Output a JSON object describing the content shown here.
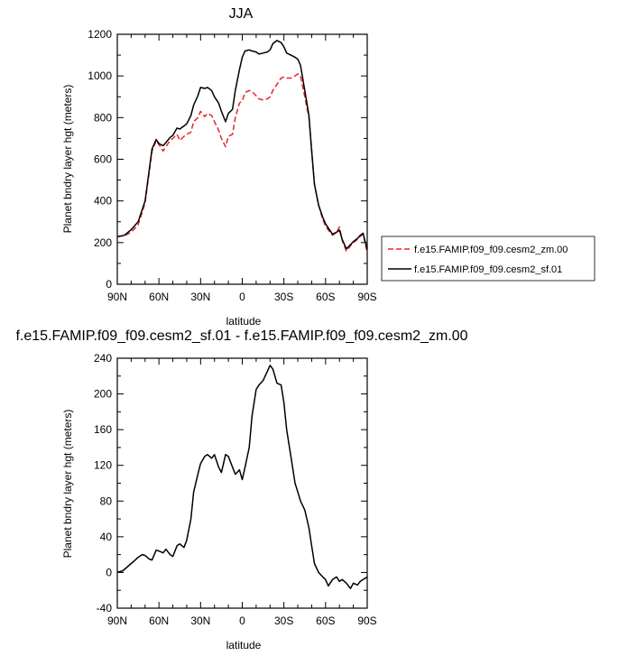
{
  "chart_data": [
    {
      "type": "line",
      "title": "JJA",
      "xlabel": "latitude",
      "ylabel": "Planet bndry layer hgt (meters)",
      "xlim": [
        90,
        -90
      ],
      "ylim": [
        0,
        1200
      ],
      "x_tick_labels": [
        "90N",
        "60N",
        "30N",
        "0",
        "30S",
        "60S",
        "90S"
      ],
      "y_tick_labels": [
        "0",
        "200",
        "400",
        "600",
        "800",
        "1000",
        "1200"
      ],
      "legend_position": "right",
      "x": [
        90,
        85,
        80,
        75,
        70,
        65,
        62,
        60,
        57,
        55,
        52,
        50,
        47,
        45,
        42,
        40,
        37,
        35,
        32,
        30,
        27,
        25,
        22,
        20,
        17,
        15,
        12,
        10,
        7,
        5,
        2,
        0,
        -2,
        -5,
        -7,
        -10,
        -12,
        -15,
        -18,
        -20,
        -22,
        -25,
        -28,
        -30,
        -32,
        -35,
        -38,
        -40,
        -42,
        -45,
        -48,
        -50,
        -52,
        -55,
        -58,
        -60,
        -62,
        -65,
        -68,
        -70,
        -72,
        -75,
        -78,
        -80,
        -83,
        -85,
        -87,
        -90
      ],
      "series": [
        {
          "name": "f.e15.FAMIP.f09_f09.cesm2_zm.00",
          "color": "#e8232a",
          "dash": "dashed",
          "values": [
            230,
            232,
            250,
            285,
            390,
            640,
            690,
            670,
            640,
            660,
            690,
            700,
            720,
            690,
            710,
            720,
            730,
            780,
            800,
            830,
            805,
            820,
            810,
            780,
            740,
            700,
            660,
            710,
            720,
            800,
            870,
            880,
            920,
            930,
            925,
            905,
            890,
            885,
            890,
            900,
            930,
            960,
            990,
            995,
            990,
            990,
            1000,
            1010,
            1000,
            900,
            800,
            650,
            480,
            380,
            310,
            280,
            260,
            235,
            250,
            275,
            210,
            160,
            185,
            200,
            215,
            230,
            240,
            155
          ]
        },
        {
          "name": "f.e15.FAMIP.f09_f09.cesm2_sf.01",
          "color": "#000000",
          "dash": "solid",
          "values": [
            228,
            235,
            262,
            300,
            400,
            650,
            695,
            675,
            665,
            680,
            705,
            715,
            750,
            745,
            760,
            770,
            810,
            860,
            905,
            945,
            940,
            945,
            930,
            900,
            870,
            830,
            780,
            820,
            840,
            930,
            1030,
            1090,
            1120,
            1125,
            1120,
            1115,
            1105,
            1110,
            1115,
            1125,
            1155,
            1170,
            1160,
            1140,
            1110,
            1100,
            1090,
            1080,
            1050,
            930,
            810,
            640,
            480,
            380,
            320,
            290,
            270,
            240,
            250,
            260,
            215,
            170,
            190,
            205,
            220,
            235,
            245,
            165
          ]
        }
      ]
    },
    {
      "type": "line",
      "title": "f.e15.FAMIP.f09_f09.cesm2_sf.01 - f.e15.FAMIP.f09_f09.cesm2_zm.00",
      "xlabel": "latitude",
      "ylabel": "Planet bndry layer hgt (meters)",
      "xlim": [
        90,
        -90
      ],
      "ylim": [
        -40,
        240
      ],
      "x_tick_labels": [
        "90N",
        "60N",
        "30N",
        "0",
        "30S",
        "60S",
        "90S"
      ],
      "y_tick_labels": [
        "-40",
        "0",
        "40",
        "80",
        "120",
        "160",
        "200",
        "240"
      ],
      "x": [
        90,
        86,
        83,
        80,
        77,
        75,
        72,
        70,
        67,
        65,
        62,
        60,
        57,
        55,
        52,
        50,
        47,
        45,
        42,
        40,
        37,
        35,
        32,
        30,
        27,
        25,
        22,
        20,
        17,
        15,
        12,
        10,
        7,
        5,
        2,
        0,
        -2,
        -5,
        -7,
        -10,
        -12,
        -15,
        -18,
        -20,
        -22,
        -25,
        -28,
        -30,
        -32,
        -35,
        -38,
        -40,
        -42,
        -45,
        -48,
        -50,
        -52,
        -55,
        -58,
        -60,
        -62,
        -65,
        -68,
        -70,
        -72,
        -75,
        -78,
        -80,
        -83,
        -85,
        -87,
        -90
      ],
      "series": [
        {
          "name": "",
          "color": "#000000",
          "values": [
            0,
            2,
            6,
            10,
            14,
            17,
            20,
            19,
            15,
            14,
            25,
            24,
            22,
            26,
            20,
            18,
            30,
            32,
            28,
            36,
            60,
            90,
            110,
            122,
            130,
            132,
            128,
            132,
            118,
            112,
            132,
            130,
            118,
            110,
            115,
            104,
            118,
            140,
            175,
            205,
            210,
            215,
            225,
            232,
            228,
            212,
            210,
            190,
            160,
            130,
            100,
            90,
            80,
            70,
            50,
            30,
            10,
            0,
            -5,
            -8,
            -15,
            -8,
            -5,
            -10,
            -8,
            -12,
            -18,
            -12,
            -14,
            -10,
            -8,
            -5
          ]
        }
      ]
    }
  ]
}
